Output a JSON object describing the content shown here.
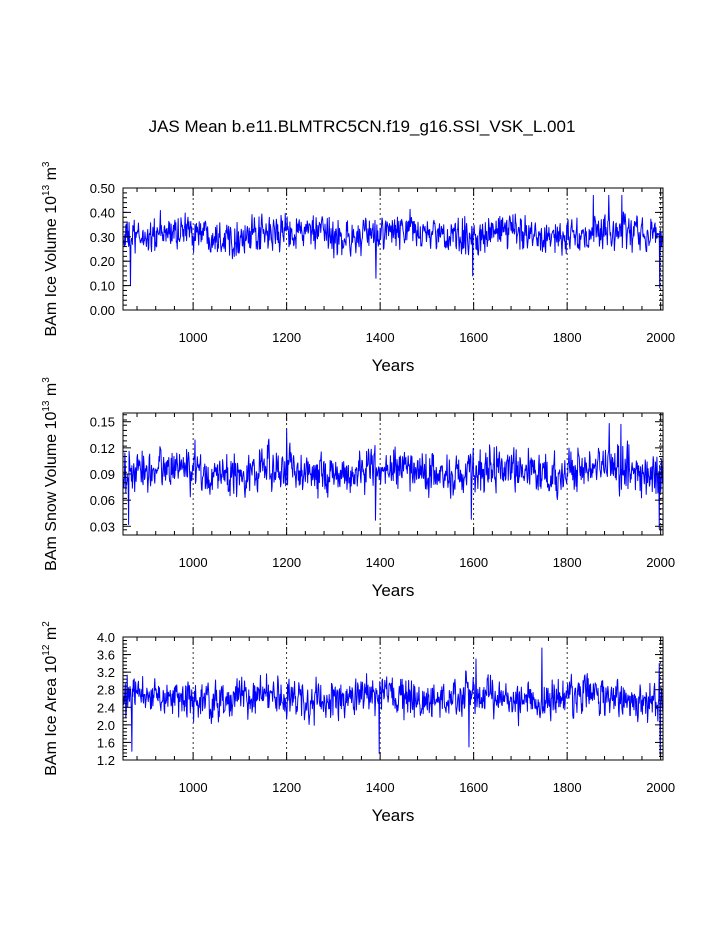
{
  "figure": {
    "title": "JAS Mean b.e11.BLMTRC5CN.f19_g16.SSI_VSK_L.001"
  },
  "chart_data": [
    {
      "type": "line",
      "title": "JAS Mean b.e11.BLMTRC5CN.f19_g16.SSI_VSK_L.001",
      "ylabel_main": "BAm Ice Volume 10",
      "ylabel_exp1": "13",
      "ylabel_mid": " m",
      "ylabel_exp2": "3",
      "xlabel": "Years",
      "xlim": [
        850,
        2005
      ],
      "ylim": [
        0.0,
        0.5
      ],
      "xticks": [
        "1000",
        "1200",
        "1400",
        "1600",
        "1800",
        "2000"
      ],
      "yticks": [
        "0.00",
        "0.10",
        "0.20",
        "0.30",
        "0.40",
        "0.50"
      ],
      "grid": "vertical dashed at major x ticks",
      "color": "#0000ff",
      "series": [
        {
          "x_start": 850,
          "x_end": 2005,
          "mean": 0.31,
          "amplitude": 0.06,
          "min": 0.09,
          "max": 0.47,
          "dips": [
            [
              866,
              0.1
            ],
            [
              1391,
              0.13
            ],
            [
              1598,
              0.14
            ],
            [
              1998,
              0.09
            ]
          ],
          "peaks": [
            [
              1856,
              0.47
            ],
            [
              1889,
              0.47
            ],
            [
              1917,
              0.47
            ]
          ]
        }
      ]
    },
    {
      "type": "line",
      "ylabel_main": "BAm Snow Volume 10",
      "ylabel_exp1": "13",
      "ylabel_mid": " m",
      "ylabel_exp2": "3",
      "xlabel": "Years",
      "xlim": [
        850,
        2005
      ],
      "ylim": [
        0.02,
        0.16
      ],
      "xticks": [
        "1000",
        "1200",
        "1400",
        "1600",
        "1800",
        "2000"
      ],
      "yticks": [
        "0.03",
        "0.06",
        "0.09",
        "0.12",
        "0.15"
      ],
      "grid": "vertical dashed at major x ticks",
      "color": "#0000ff",
      "series": [
        {
          "x_start": 850,
          "x_end": 2005,
          "mean": 0.093,
          "amplitude": 0.02,
          "min": 0.027,
          "max": 0.148,
          "dips": [
            [
              862,
              0.032
            ],
            [
              1390,
              0.037
            ],
            [
              1595,
              0.038
            ],
            [
              1997,
              0.027
            ]
          ],
          "peaks": [
            [
              1200,
              0.142
            ],
            [
              1890,
              0.148
            ],
            [
              1915,
              0.147
            ]
          ]
        }
      ]
    },
    {
      "type": "line",
      "ylabel_main": "BAm Ice Area 10",
      "ylabel_exp1": "12",
      "ylabel_mid": " m",
      "ylabel_exp2": "2",
      "xlabel": "Years",
      "xlim": [
        850,
        2005
      ],
      "ylim": [
        1.2,
        4.0
      ],
      "xticks": [
        "1000",
        "1200",
        "1400",
        "1600",
        "1800",
        "2000"
      ],
      "yticks": [
        "1.2",
        "1.6",
        "2.0",
        "2.4",
        "2.8",
        "3.2",
        "3.6",
        "4.0"
      ],
      "grid": "vertical dashed at major x ticks",
      "color": "#0000ff",
      "series": [
        {
          "x_start": 850,
          "x_end": 2005,
          "mean": 2.6,
          "amplitude": 0.35,
          "min": 1.3,
          "max": 3.75,
          "dips": [
            [
              869,
              1.4
            ],
            [
              1398,
              1.35
            ],
            [
              1590,
              1.5
            ],
            [
              1999,
              1.3
            ]
          ],
          "peaks": [
            [
              1605,
              3.5
            ],
            [
              1746,
              3.75
            ],
            [
              1997,
              3.4
            ]
          ]
        }
      ]
    }
  ]
}
